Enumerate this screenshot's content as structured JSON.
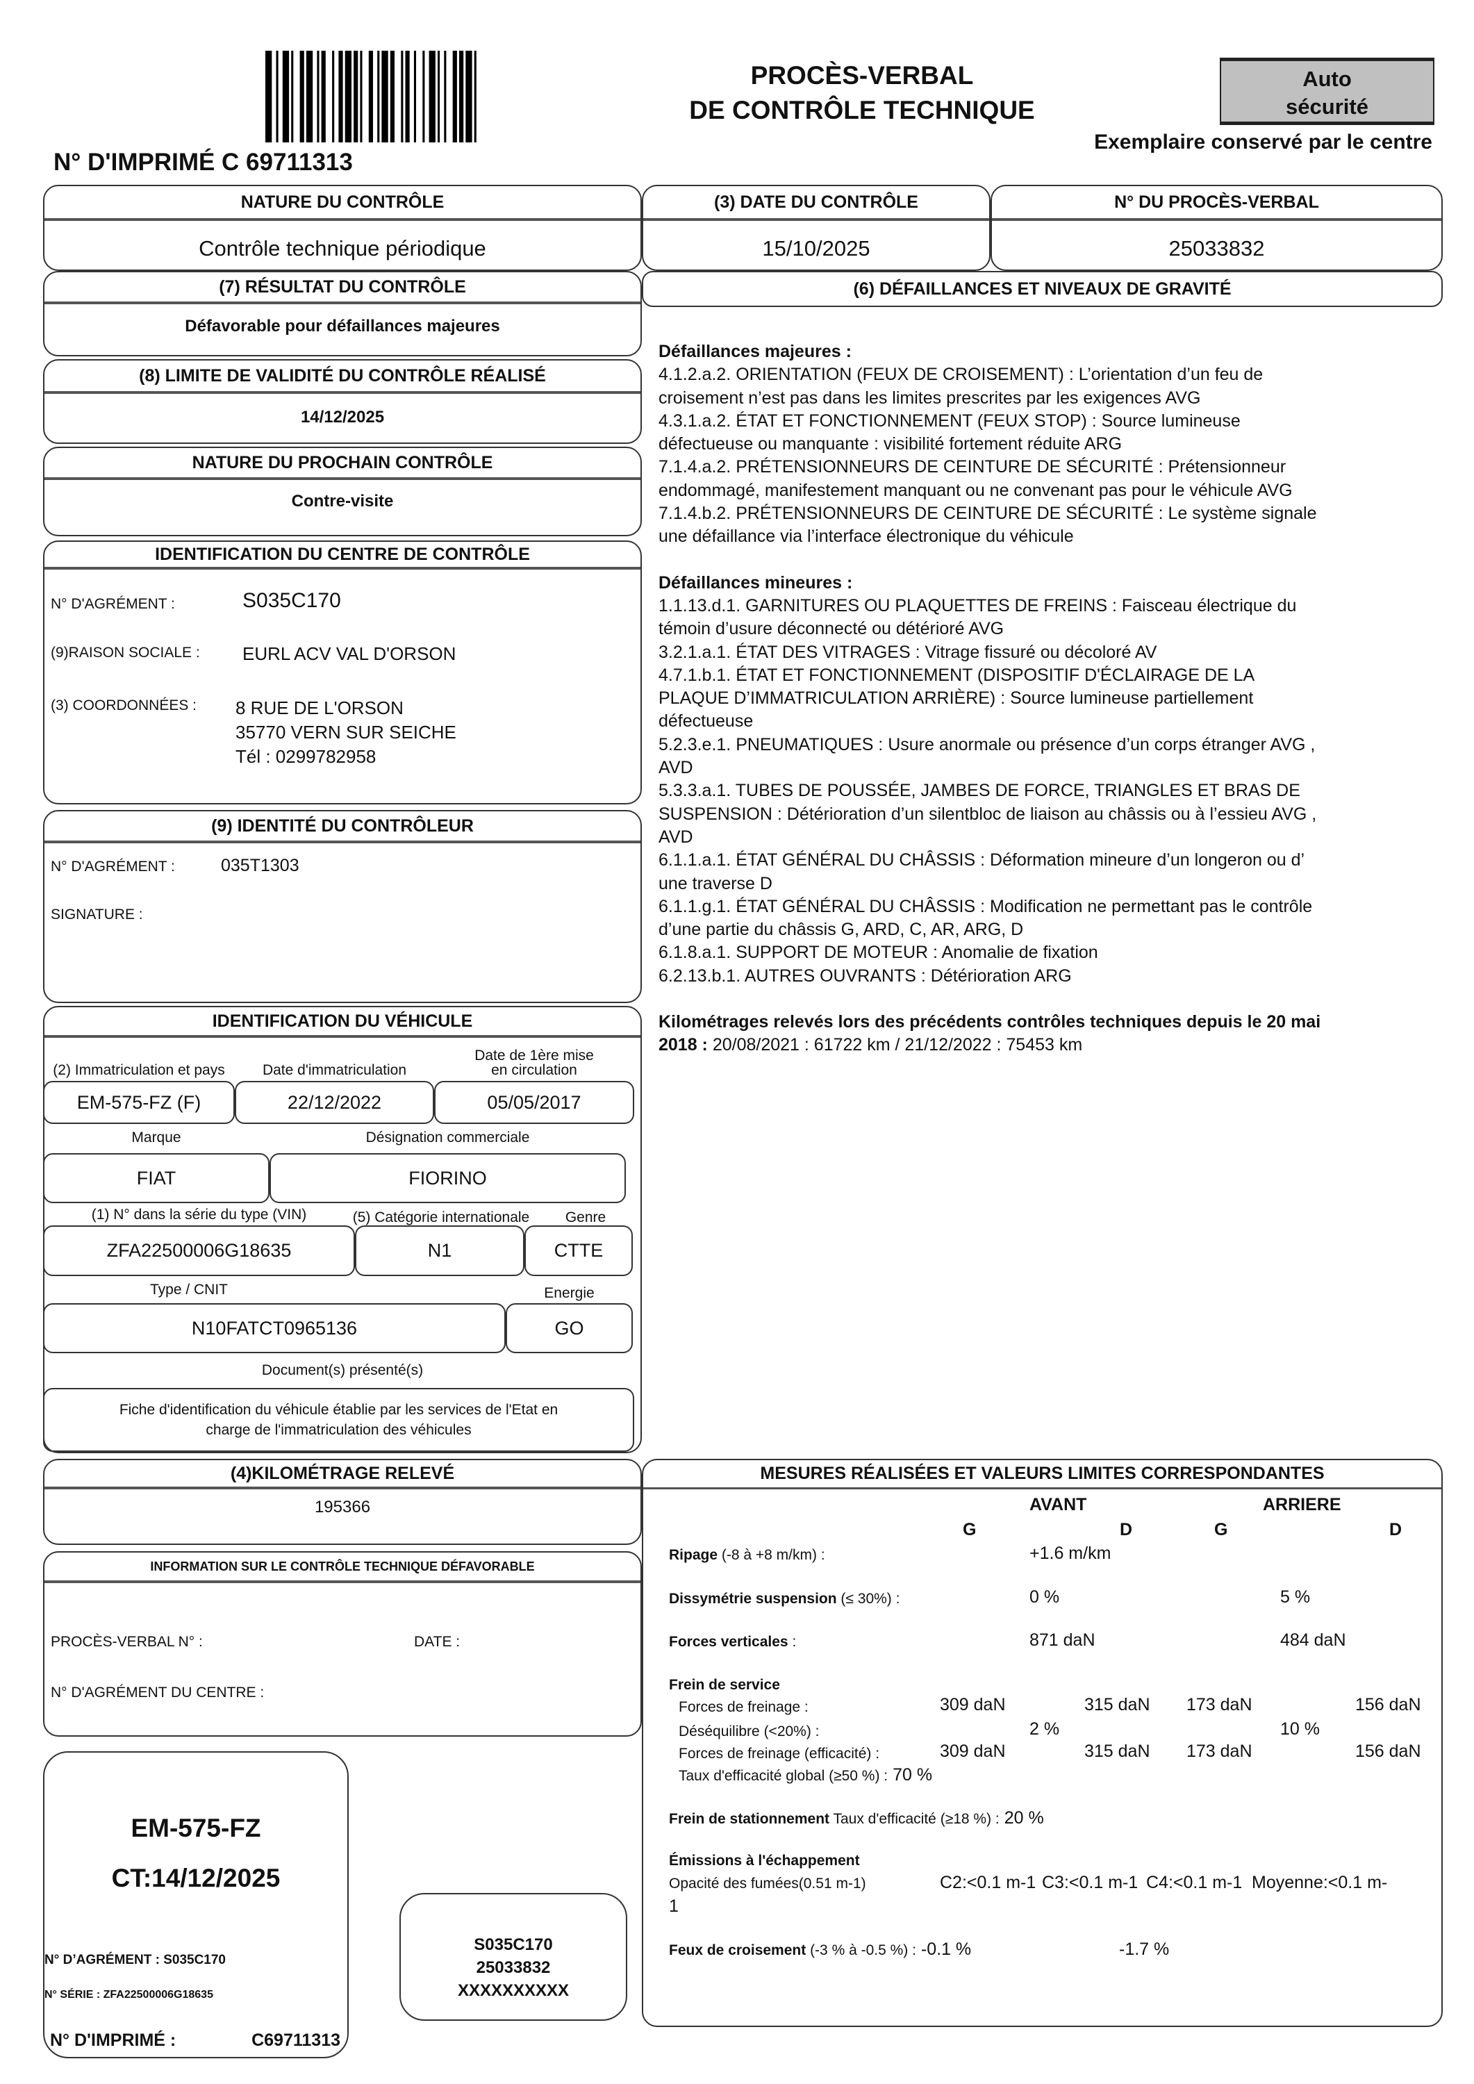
{
  "header": {
    "print_number": "N° D'IMPRIMÉ C 69711313",
    "title_line1": "PROCÈS-VERBAL",
    "title_line2": "DE CONTRÔLE TECHNIQUE",
    "brand_line1": "Auto",
    "brand_line2": "sécurité",
    "brand_bg": "#c0c0c0",
    "copy_note": "Exemplaire conservé par le centre"
  },
  "nature": {
    "header": "NATURE DU CONTRÔLE",
    "value": "Contrôle technique périodique"
  },
  "date": {
    "header": "(3) DATE DU CONTRÔLE",
    "value": "15/10/2025"
  },
  "pv": {
    "header": "N° DU PROCÈS-VERBAL",
    "value": "25033832"
  },
  "result": {
    "header": "(7) RÉSULTAT DU CONTRÔLE",
    "value": "Défavorable pour défaillances majeures"
  },
  "validity": {
    "header": "(8) LIMITE DE VALIDITÉ DU CONTRÔLE RÉALISÉ",
    "value": "14/12/2025"
  },
  "next": {
    "header": "NATURE DU PROCHAIN CONTRÔLE",
    "value": "Contre-visite"
  },
  "centre": {
    "header": "IDENTIFICATION DU CENTRE DE CONTRÔLE",
    "agrement_label": "N° D'AGRÉMENT :",
    "agrement": "S035C170",
    "raison_label": "(9)RAISON SOCIALE :",
    "raison": "EURL ACV VAL D'ORSON",
    "coord_label": "(3) COORDONNÉES :",
    "address1": "8 RUE DE L'ORSON",
    "address2": "35770 VERN SUR SEICHE",
    "phone": "Tél : 0299782958"
  },
  "controller": {
    "header": "(9) IDENTITÉ DU CONTRÔLEUR",
    "agrement_label": "N° D'AGRÉMENT :",
    "agrement": "035T1303",
    "signature_label": "SIGNATURE :"
  },
  "vehicle": {
    "header": "IDENTIFICATION DU VÉHICULE",
    "immat_label": "(2) Immatriculation et pays",
    "immat": "EM-575-FZ  (F)",
    "date_immat_label": "Date d'immatriculation",
    "date_immat": "22/12/2022",
    "first_date_label1": "Date de 1ère mise",
    "first_date_label2": "en circulation",
    "first_date": "05/05/2017",
    "marque_label": "Marque",
    "marque": "FIAT",
    "designation_label": "Désignation commerciale",
    "designation": "FIORINO",
    "vin_label": "(1) N° dans la série du type (VIN)",
    "vin": "ZFA22500006G18635",
    "categorie_label": "(5) Catégorie internationale",
    "categorie": "N1",
    "genre_label": "Genre",
    "genre": "CTTE",
    "type_label": "Type / CNIT",
    "type": "N10FATCT0965136",
    "energie_label": "Energie",
    "energie": "GO",
    "docs_label": "Document(s) présenté(s)",
    "docs1": "Fiche d'identification du véhicule établie par les services de l'Etat en",
    "docs2": "charge de l'immatriculation des véhicules"
  },
  "km": {
    "header": "(4)KILOMÉTRAGE RELEVÉ",
    "value": "195366"
  },
  "unfavorable": {
    "header": "INFORMATION SUR LE CONTRÔLE TECHNIQUE DÉFAVORABLE",
    "pv_label": "PROCÈS-VERBAL N° :",
    "date_label": "DATE :",
    "centre_label": "N° D'AGRÉMENT DU CENTRE :"
  },
  "defects": {
    "header": "(6) DÉFAILLANCES ET NIVEAUX DE GRAVITÉ",
    "major_title": "Défaillances majeures :",
    "major": [
      "4.1.2.a.2. ORIENTATION (FEUX DE CROISEMENT) : L’orientation d’un feu de",
      "croisement n’est pas dans les limites prescrites par les exigences AVG",
      "4.3.1.a.2. ÉTAT ET FONCTIONNEMENT (FEUX STOP) : Source lumineuse",
      "défectueuse ou manquante : visibilité fortement réduite ARG",
      "7.1.4.a.2. PRÉTENSIONNEURS DE CEINTURE DE SÉCURITÉ : Prétensionneur",
      "endommagé, manifestement manquant ou ne convenant pas pour le véhicule AVG",
      "7.1.4.b.2. PRÉTENSIONNEURS DE CEINTURE DE SÉCURITÉ : Le système signale",
      "une défaillance via l’interface électronique du véhicule"
    ],
    "minor_title": "Défaillances mineures :",
    "minor": [
      "1.1.13.d.1. GARNITURES OU PLAQUETTES DE FREINS : Faisceau électrique du",
      "témoin d’usure déconnecté ou détérioré AVG",
      "3.2.1.a.1. ÉTAT DES VITRAGES : Vitrage fissuré ou décoloré AV",
      "4.7.1.b.1. ÉTAT ET FONCTIONNEMENT (DISPOSITIF D'ÉCLAIRAGE DE LA",
      "PLAQUE D’IMMATRICULATION ARRIÈRE) : Source lumineuse partiellement",
      "défectueuse",
      "5.2.3.e.1. PNEUMATIQUES : Usure anormale ou présence d’un corps étranger AVG ,",
      "AVD",
      "5.3.3.a.1. TUBES DE POUSSÉE, JAMBES DE FORCE, TRIANGLES ET BRAS DE",
      "SUSPENSION : Détérioration d’un silentbloc de liaison au châssis ou à l’essieu AVG ,",
      "AVD",
      "6.1.1.a.1. ÉTAT GÉNÉRAL DU CHÂSSIS : Déformation mineure d’un longeron ou d’",
      "une traverse D",
      "6.1.1.g.1. ÉTAT GÉNÉRAL DU CHÂSSIS : Modification ne permettant pas le contrôle",
      "d’une partie du châssis G, ARD, C, AR, ARG, D",
      "6.1.8.a.1. SUPPORT DE MOTEUR : Anomalie de fixation",
      "6.2.13.b.1. AUTRES OUVRANTS : Détérioration ARG"
    ],
    "km_history_title1": "Kilométrages relevés lors des précédents contrôles techniques depuis le 20 mai",
    "km_history_title2": "2018 :",
    "km_history": " 20/08/2021 : 61722 km / 21/12/2022 : 75453 km"
  },
  "measures": {
    "header": "MESURES RÉALISÉES ET VALEURS LIMITES CORRESPONDANTES",
    "avant": "AVANT",
    "arriere": "ARRIERE",
    "g": "G",
    "d": "D",
    "ripage_label": "Ripage",
    "ripage_limit": " (-8 à +8 m/km) :",
    "ripage": "+1.6 m/km",
    "dissym_label": "Dissymétrie suspension",
    "dissym_limit": " (≤ 30%) :",
    "dissym_av": "0 %",
    "dissym_ar": "5 %",
    "fv_label": "Forces verticales",
    "fv_sep": " :",
    "fv_av": "871 daN",
    "fv_ar": "484 daN",
    "service_label": "Frein de service",
    "ff_label": "Forces de freinage :",
    "ff": [
      "309 daN",
      "315 daN",
      "173 daN",
      "156 daN"
    ],
    "deseq_label": "Déséquilibre (<20%) :",
    "deseq_av": "2 %",
    "deseq_ar": "10 %",
    "ffe_label": "Forces de freinage (efficacité) :",
    "ffe": [
      "309 daN",
      "315 daN",
      "173 daN",
      "156 daN"
    ],
    "taux_label": "Taux d'efficacité global (≥50 %) :",
    "taux": " 70 %",
    "stat_label": "Frein de stationnement",
    "stat_limit": " Taux d'efficacité (≥18 %) :",
    "stat": " 20 %",
    "emis_label": "Émissions à l'échappement",
    "opac_label": "Opacité des fumées(0.51 m-1)",
    "c2": "C2:<0.1 m-1",
    "c3": "C3:<0.1 m-1",
    "c4": "C4:<0.1 m-1",
    "moy": "Moyenne:<0.1 m-",
    "moy2": "1",
    "feux_label": "Feux de croisement",
    "feux_limit": " (-3 % à  -0.5 %) :",
    "feux_g": " -0.1 %",
    "feux_d": "-1.7 %"
  },
  "sticker": {
    "plate": "EM-575-FZ",
    "ct": "CT:14/12/2025",
    "agrement": "N° D’AGRÉMENT : S035C170",
    "serie": "N° SÉRIE : ZFA22500006G18635",
    "imprime_label": "N° D'IMPRIMÉ :",
    "imprime": "C69711313"
  },
  "stamp": {
    "line1": "S035C170",
    "line2": "25033832",
    "line3": "XXXXXXXXXX"
  }
}
